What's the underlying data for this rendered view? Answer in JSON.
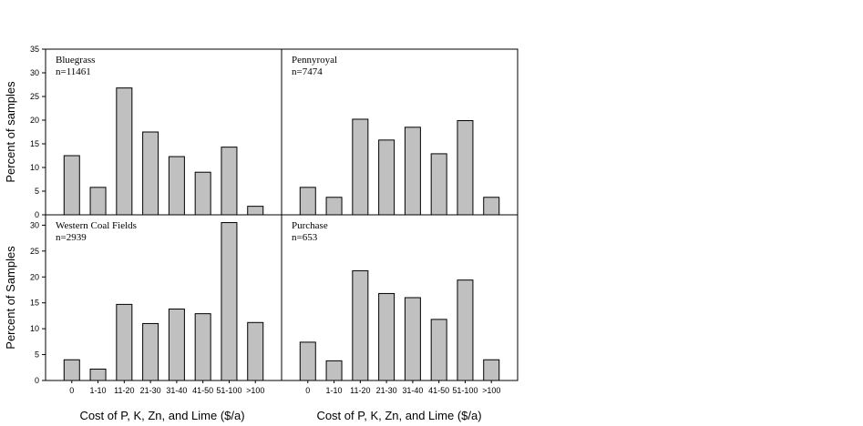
{
  "chart_data": {
    "type": "bar",
    "categories": [
      "0",
      "1-10",
      "11-20",
      "21-30",
      "31-40",
      "41-50",
      "51-100",
      ">100"
    ],
    "xlabel": "Cost of P, K, Zn, and Lime ($/a)",
    "rows": [
      {
        "ylabel": "Percent of samples",
        "ylim": [
          0,
          35
        ],
        "yticks": [
          0,
          5,
          10,
          15,
          20,
          25,
          30,
          35
        ],
        "panels": [
          {
            "name": "Bluegrass",
            "n": "n=11461",
            "values": [
              12.5,
              5.8,
              26.8,
              17.5,
              12.3,
              9.0,
              14.3,
              1.8
            ]
          },
          {
            "name": "Pennyroyal",
            "n": "n=7474",
            "values": [
              5.8,
              3.7,
              20.2,
              15.8,
              18.5,
              12.9,
              19.9,
              3.7
            ]
          }
        ]
      },
      {
        "ylabel": "Percent of Samples",
        "ylim": [
          0,
          32
        ],
        "yticks": [
          0,
          5,
          10,
          15,
          20,
          25,
          30
        ],
        "panels": [
          {
            "name": "Western Coal Fields",
            "n": "n=2939",
            "values": [
              4.0,
              2.2,
              14.7,
              11.0,
              13.8,
              12.9,
              30.5,
              11.2
            ]
          },
          {
            "name": "Purchase",
            "n": "n=653",
            "values": [
              7.4,
              3.8,
              21.2,
              16.8,
              16.0,
              11.8,
              19.4,
              4.0
            ]
          }
        ]
      }
    ]
  }
}
